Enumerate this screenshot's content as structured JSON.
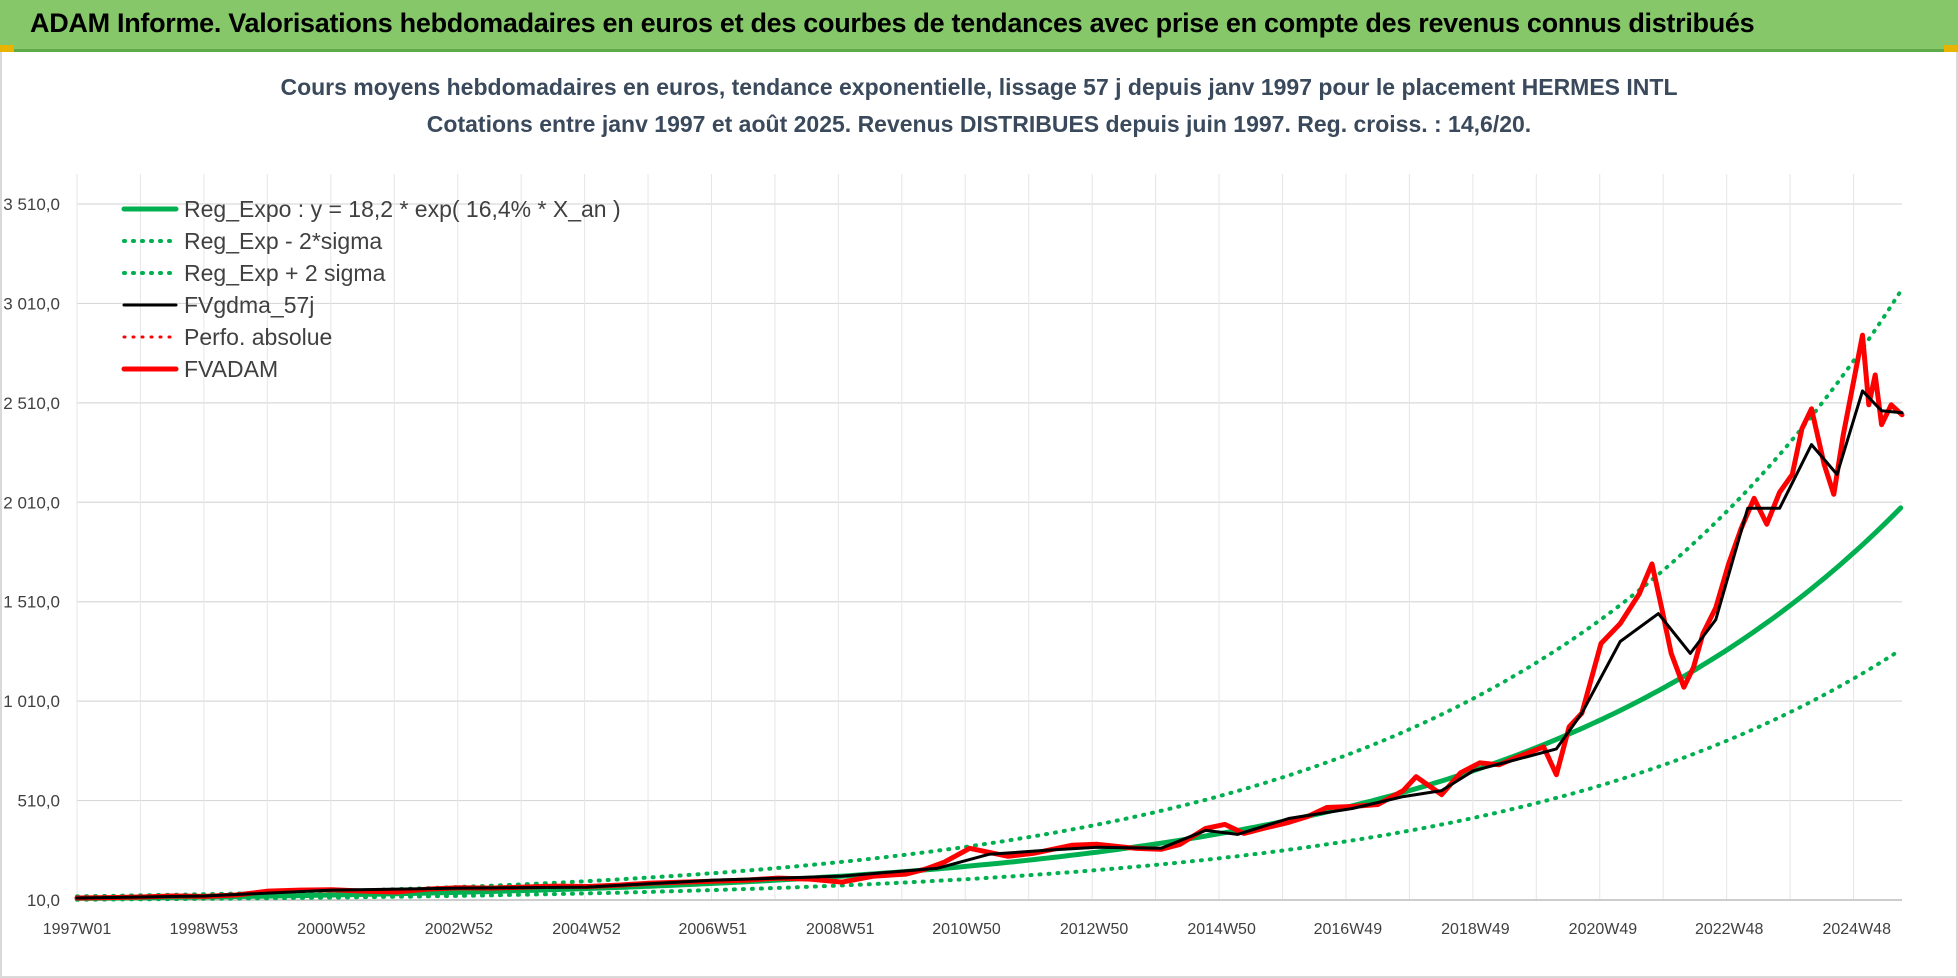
{
  "banner": {
    "title": "ADAM Informe. Valorisations hebdomadaires en euros et des courbes de tendances avec prise en compte des revenus connus distribués",
    "color": "#86c76a"
  },
  "chart_data": {
    "type": "line",
    "title": "Cours moyens hebdomadaires en euros, tendance exponentielle, lissage 57 j depuis janv 1997 pour le placement HERMES INTL",
    "subtitle": "Cotations entre janv 1997 et août 2025.  Revenus DISTRIBUES depuis juin 1997.  Reg. croiss. : 14,6/20.",
    "xlabel": "",
    "ylabel": "",
    "ylim": [
      10,
      3510
    ],
    "y_ticks": [
      "10,0",
      "510,0",
      "1 010,0",
      "1 510,0",
      "2 010,0",
      "2 510,0",
      "3 010,0",
      "3 510,0"
    ],
    "y_tick_values": [
      10,
      510,
      1010,
      1510,
      2010,
      2510,
      3010,
      3510
    ],
    "x_ticks": [
      "1997W01",
      "1998W53",
      "2000W52",
      "2002W52",
      "2004W52",
      "2006W51",
      "2008W51",
      "2010W50",
      "2012W50",
      "2014W50",
      "2016W49",
      "2018W49",
      "2020W49",
      "2022W48",
      "2024W48"
    ],
    "x_tick_years": [
      1997.0,
      1998.99,
      2000.99,
      2002.99,
      2004.99,
      2006.97,
      2008.97,
      2010.95,
      2012.95,
      2014.95,
      2016.93,
      2018.93,
      2020.93,
      2022.91,
      2024.91
    ],
    "x_range": [
      1997.0,
      2025.62
    ],
    "grid": true,
    "legend_position": "top-left",
    "regression": {
      "a": 18.2,
      "rate": 0.164,
      "x0": 1997.0
    },
    "series": [
      {
        "name": "Reg_Expo : y = 18,2 * exp( 16,4% *  X_an )",
        "color": "#00b050",
        "style": "solid",
        "width": 5
      },
      {
        "name": "Reg_Exp - 2*sigma",
        "color": "#00b050",
        "style": "dotted",
        "width": 4,
        "factor": 0.64
      },
      {
        "name": "Reg_Exp + 2 sigma",
        "color": "#00b050",
        "style": "dotted",
        "width": 4,
        "factor": 1.55
      },
      {
        "name": "FVgdma_57j",
        "color": "#000000",
        "style": "solid",
        "width": 3,
        "x": [
          1997.0,
          1999.0,
          2001.0,
          2003.0,
          2005.0,
          2007.0,
          2009.0,
          2010.5,
          2011.3,
          2012.2,
          2013.0,
          2014.0,
          2014.7,
          2015.2,
          2016.0,
          2017.0,
          2017.8,
          2018.4,
          2018.9,
          2019.5,
          2020.2,
          2020.6,
          2021.2,
          2021.8,
          2022.3,
          2022.7,
          2023.2,
          2023.7,
          2024.2,
          2024.6,
          2025.0,
          2025.3,
          2025.62
        ],
        "y": [
          20,
          30,
          60,
          70,
          75,
          110,
          130,
          170,
          240,
          260,
          275,
          270,
          360,
          340,
          420,
          470,
          530,
          560,
          660,
          710,
          770,
          950,
          1310,
          1450,
          1250,
          1420,
          1980,
          1980,
          2300,
          2150,
          2570,
          2470,
          2460
        ]
      },
      {
        "name": "Perfo. absolue",
        "color": "#ff0000",
        "style": "dotted",
        "width": 3
      },
      {
        "name": "FVADAM",
        "color": "#ff0000",
        "style": "solid",
        "width": 5,
        "x": [
          1997.0,
          1997.5,
          1998.0,
          1998.5,
          1999.0,
          1999.5,
          2000.0,
          2000.5,
          2001.0,
          2001.5,
          2002.0,
          2002.5,
          2003.0,
          2003.5,
          2004.0,
          2004.5,
          2005.0,
          2005.5,
          2006.0,
          2006.5,
          2007.0,
          2007.5,
          2008.0,
          2008.5,
          2009.0,
          2009.5,
          2010.0,
          2010.3,
          2010.6,
          2011.0,
          2011.3,
          2011.6,
          2012.0,
          2012.3,
          2012.6,
          2013.0,
          2013.3,
          2013.6,
          2014.0,
          2014.3,
          2014.7,
          2015.0,
          2015.3,
          2015.6,
          2016.0,
          2016.3,
          2016.6,
          2017.0,
          2017.4,
          2017.8,
          2018.0,
          2018.4,
          2018.7,
          2019.0,
          2019.3,
          2019.6,
          2020.0,
          2020.2,
          2020.4,
          2020.6,
          2020.9,
          2021.2,
          2021.5,
          2021.7,
          2021.85,
          2022.0,
          2022.2,
          2022.35,
          2022.5,
          2022.7,
          2022.9,
          2023.1,
          2023.3,
          2023.5,
          2023.7,
          2023.9,
          2024.05,
          2024.2,
          2024.4,
          2024.55,
          2024.7,
          2024.85,
          2025.0,
          2025.1,
          2025.2,
          2025.3,
          2025.45,
          2025.62
        ],
        "y": [
          20,
          22,
          25,
          30,
          28,
          35,
          55,
          60,
          62,
          55,
          50,
          65,
          72,
          70,
          75,
          80,
          78,
          85,
          95,
          100,
          105,
          110,
          120,
          115,
          100,
          130,
          140,
          165,
          200,
          270,
          250,
          230,
          245,
          265,
          285,
          290,
          280,
          270,
          265,
          290,
          370,
          390,
          345,
          370,
          400,
          430,
          475,
          480,
          490,
          560,
          630,
          540,
          650,
          700,
          690,
          730,
          780,
          640,
          880,
          950,
          1300,
          1400,
          1550,
          1700,
          1480,
          1250,
          1080,
          1180,
          1350,
          1480,
          1700,
          1880,
          2030,
          1900,
          2060,
          2150,
          2380,
          2480,
          2200,
          2050,
          2350,
          2600,
          2850,
          2500,
          2650,
          2400,
          2500,
          2450
        ]
      }
    ]
  }
}
